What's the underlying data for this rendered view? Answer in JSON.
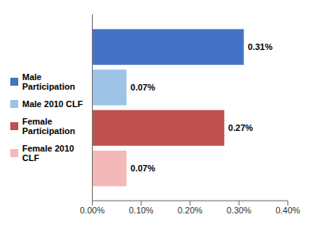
{
  "chart_data": {
    "type": "bar",
    "orientation": "horizontal",
    "categories": [
      null
    ],
    "series": [
      {
        "name": "Male\nParticipation",
        "color": "#4472C4",
        "values": [
          0.31
        ],
        "value_labels": [
          "0.31%"
        ]
      },
      {
        "name": "Male 2010 CLF",
        "color": "#9DC3E6",
        "values": [
          0.07
        ],
        "value_labels": [
          "0.07%"
        ]
      },
      {
        "name": "Female\nParticipation",
        "color": "#C0504D",
        "values": [
          0.27
        ],
        "value_labels": [
          "0.27%"
        ]
      },
      {
        "name": "Female 2010\nCLF",
        "color": "#F4B8B8",
        "values": [
          0.07
        ],
        "value_labels": [
          "0.07%"
        ]
      }
    ],
    "xlim": [
      0,
      0.4
    ],
    "xticks": [
      {
        "value": 0.0,
        "label": "0.00%"
      },
      {
        "value": 0.1,
        "label": "0.10%"
      },
      {
        "value": 0.2,
        "label": "0.20%"
      },
      {
        "value": 0.3,
        "label": "0.30%"
      },
      {
        "value": 0.4,
        "label": "0.40%"
      }
    ],
    "data_labels": true,
    "tick_labels": "x",
    "grid": false
  }
}
